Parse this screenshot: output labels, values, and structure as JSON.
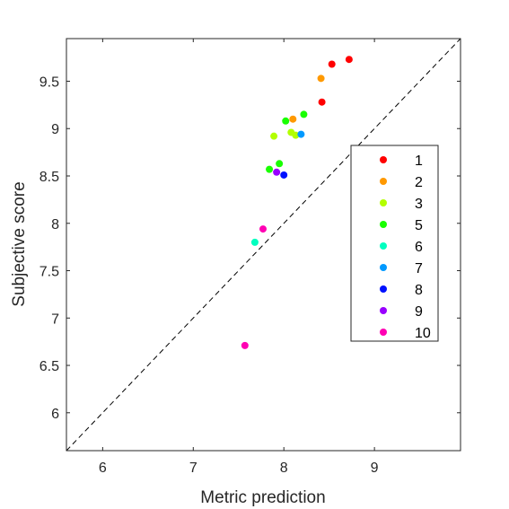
{
  "chart_data": {
    "type": "scatter",
    "title": "",
    "xlabel": "Metric prediction",
    "ylabel": "Subjective score",
    "xlim": [
      5.6,
      9.95
    ],
    "ylim": [
      5.6,
      9.95
    ],
    "xticks": [
      "6",
      "7",
      "8",
      "9"
    ],
    "yticks": [
      "6",
      "6.5",
      "7",
      "7.5",
      "8",
      "8.5",
      "9",
      "9.5"
    ],
    "xtick_values": [
      6,
      7,
      8,
      9
    ],
    "ytick_values": [
      6,
      6.5,
      7,
      7.5,
      8,
      8.5,
      9,
      9.5
    ],
    "grid": false,
    "reference_line": "identity (y = x), dashed black",
    "legend_position": "right",
    "series": [
      {
        "name": "1",
        "color": "#ff0000",
        "points": [
          [
            8.53,
            9.68
          ],
          [
            8.72,
            9.73
          ],
          [
            8.42,
            9.28
          ]
        ]
      },
      {
        "name": "2",
        "color": "#ff9900",
        "points": [
          [
            8.41,
            9.53
          ],
          [
            8.1,
            9.1
          ]
        ]
      },
      {
        "name": "3",
        "color": "#b3ff00",
        "points": [
          [
            7.89,
            8.92
          ],
          [
            8.08,
            8.96
          ],
          [
            8.13,
            8.93
          ]
        ]
      },
      {
        "name": "5",
        "color": "#19ff00",
        "points": [
          [
            8.02,
            9.08
          ],
          [
            8.22,
            9.15
          ],
          [
            7.95,
            8.63
          ],
          [
            7.84,
            8.57
          ]
        ]
      },
      {
        "name": "6",
        "color": "#00ffbf",
        "points": [
          [
            7.68,
            7.8
          ]
        ]
      },
      {
        "name": "7",
        "color": "#0099ff",
        "points": [
          [
            8.19,
            8.94
          ]
        ]
      },
      {
        "name": "8",
        "color": "#0011ff",
        "points": [
          [
            8.0,
            8.51
          ]
        ]
      },
      {
        "name": "9",
        "color": "#9900ff",
        "points": [
          [
            7.92,
            8.54
          ]
        ]
      },
      {
        "name": "10",
        "color": "#ff00b3",
        "points": [
          [
            7.77,
            7.94
          ],
          [
            7.57,
            6.71
          ]
        ]
      }
    ]
  }
}
